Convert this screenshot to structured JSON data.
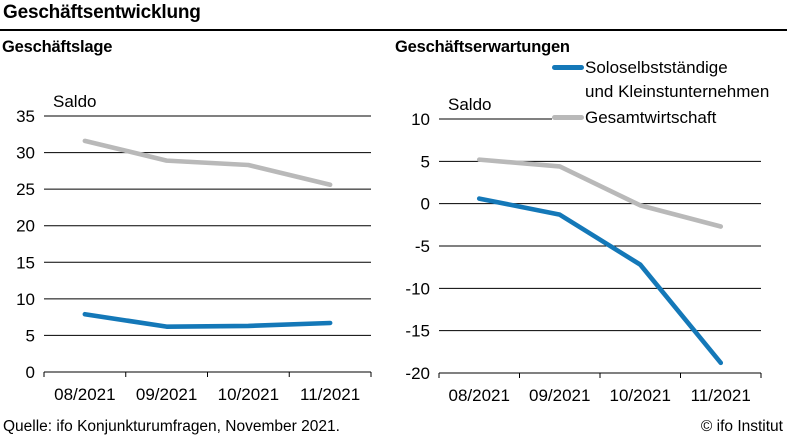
{
  "page": {
    "title": "Geschäftsentwicklung",
    "source": "Quelle: ifo Konjunkturumfragen, November 2021.",
    "copyright": "© ifo Institut"
  },
  "colors": {
    "solo_blue": "#1478b8",
    "gesamt_gray": "#b9b9b9",
    "axis_black": "#000000"
  },
  "legend": {
    "items": [
      {
        "label_lines": [
          "Soloselbstständige",
          "und Kleinstunternehmen"
        ],
        "color": "#1478b8"
      },
      {
        "label_lines": [
          "Gesamtwirtschaft"
        ],
        "color": "#b9b9b9"
      }
    ]
  },
  "chart_data": [
    {
      "type": "line",
      "title": "Geschäftslage",
      "ylabel": "Saldo",
      "xlabel": "",
      "categories": [
        "08/2021",
        "09/2021",
        "10/2021",
        "11/2021"
      ],
      "series": [
        {
          "name": "Gesamtwirtschaft",
          "color": "#b9b9b9",
          "values": [
            31.6,
            28.9,
            28.3,
            25.6
          ]
        },
        {
          "name": "Soloselbstständige und Kleinstunternehmen",
          "color": "#1478b8",
          "values": [
            7.9,
            6.2,
            6.3,
            6.7
          ]
        }
      ],
      "ylim": [
        0,
        35
      ],
      "ytick_step": 5,
      "grid": true,
      "legend_position": "none"
    },
    {
      "type": "line",
      "title": "Geschäftserwartungen",
      "ylabel": "Saldo",
      "xlabel": "",
      "categories": [
        "08/2021",
        "09/2021",
        "10/2021",
        "11/2021"
      ],
      "series": [
        {
          "name": "Gesamtwirtschaft",
          "color": "#b9b9b9",
          "values": [
            5.2,
            4.4,
            -0.2,
            -2.7
          ]
        },
        {
          "name": "Soloselbstständige und Kleinstunternehmen",
          "color": "#1478b8",
          "values": [
            0.6,
            -1.3,
            -7.2,
            -18.8
          ]
        }
      ],
      "ylim": [
        -20,
        10
      ],
      "ytick_step": 5,
      "grid": true,
      "legend_position": "top-right"
    }
  ]
}
